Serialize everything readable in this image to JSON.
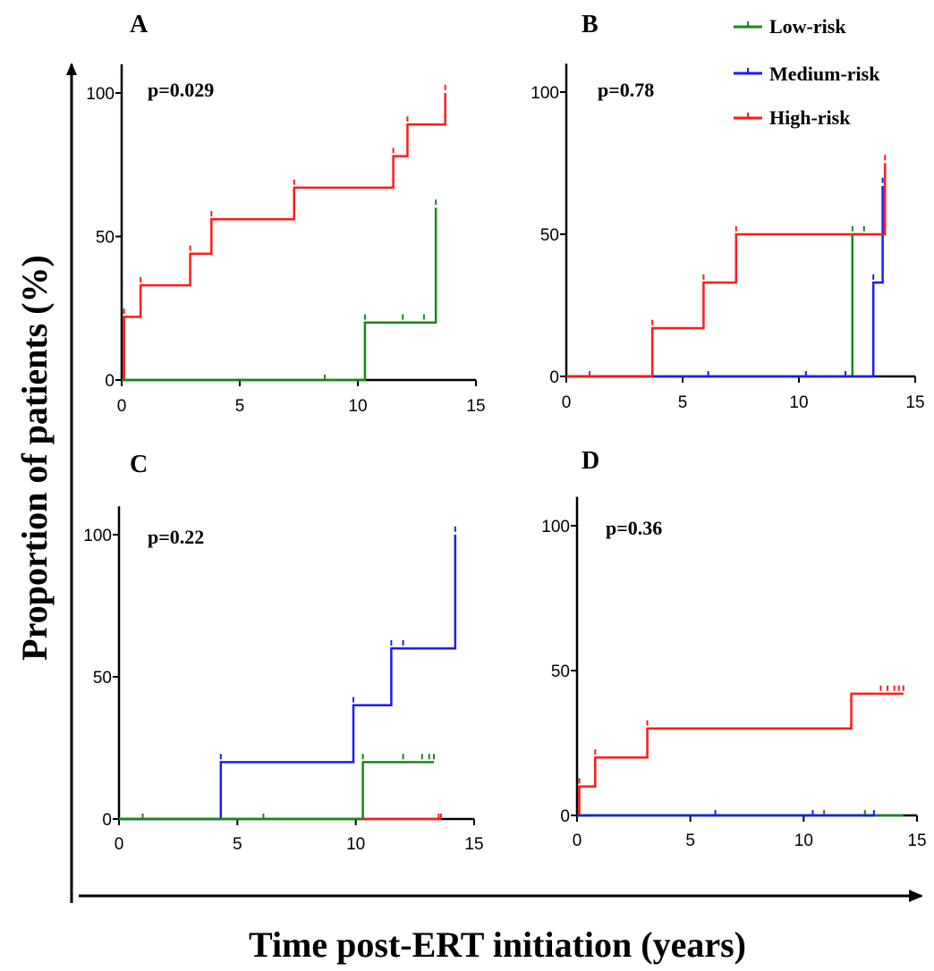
{
  "figure": {
    "y_axis_label": "Proportion  of patients (%)",
    "x_axis_label": "Time post-ERT initiation (years)"
  },
  "legend": {
    "placement": "top-right",
    "entries": [
      {
        "label": "Low-risk",
        "color": "#138a13"
      },
      {
        "label": "Medium-risk",
        "color": "#1a1aff"
      },
      {
        "label": "High-risk",
        "color": "#ff1a1a"
      }
    ]
  },
  "chart_data": [
    {
      "type": "line",
      "panel": "A",
      "annotation": "p=0.029",
      "xlim": [
        0,
        15
      ],
      "ylim": [
        0,
        110
      ],
      "x_ticks": [
        0,
        5,
        10,
        15
      ],
      "y_ticks": [
        0,
        50,
        100
      ],
      "series": [
        {
          "name": "High-risk",
          "color": "#ff1a1a",
          "steps": [
            [
              0,
              0
            ],
            [
              0.1,
              22
            ],
            [
              0.8,
              33
            ],
            [
              2.9,
              44
            ],
            [
              3.8,
              56
            ],
            [
              7.3,
              67
            ],
            [
              11.5,
              78
            ],
            [
              12.1,
              89
            ],
            [
              13.7,
              100
            ]
          ],
          "end": 13.7,
          "censored": [
            [
              0.1,
              23
            ],
            [
              0.8,
              34
            ],
            [
              2.9,
              45
            ],
            [
              3.8,
              57
            ],
            [
              7.3,
              68
            ],
            [
              11.5,
              79
            ],
            [
              12.1,
              90
            ],
            [
              13.7,
              101
            ]
          ]
        },
        {
          "name": "Low-risk",
          "color": "#138a13",
          "steps": [
            [
              0,
              0
            ],
            [
              10.3,
              20
            ],
            [
              13.3,
              60
            ]
          ],
          "end": 13.3,
          "censored": [
            [
              8.6,
              0
            ],
            [
              10.3,
              21
            ],
            [
              11.9,
              21
            ],
            [
              12.8,
              21
            ],
            [
              13.3,
              61
            ]
          ]
        }
      ]
    },
    {
      "type": "line",
      "panel": "B",
      "annotation": "p=0.78",
      "xlim": [
        0,
        15
      ],
      "ylim": [
        0,
        110
      ],
      "x_ticks": [
        0,
        5,
        10,
        15
      ],
      "y_ticks": [
        0,
        50,
        100
      ],
      "series": [
        {
          "name": "Low-risk",
          "color": "#138a13",
          "steps": [
            [
              0,
              0
            ],
            [
              12.3,
              50
            ]
          ],
          "end": 12.8,
          "censored": [
            [
              12.3,
              51
            ],
            [
              12.8,
              51
            ]
          ]
        },
        {
          "name": "Medium-risk",
          "color": "#1a1aff",
          "steps": [
            [
              0,
              0
            ],
            [
              13.2,
              33
            ],
            [
              13.6,
              67
            ]
          ],
          "end": 13.6,
          "censored": [
            [
              6.1,
              0
            ],
            [
              10.3,
              0
            ],
            [
              12.0,
              0
            ],
            [
              13.2,
              34
            ],
            [
              13.6,
              68
            ]
          ]
        },
        {
          "name": "High-risk",
          "color": "#ff1a1a",
          "steps": [
            [
              0,
              0
            ],
            [
              3.7,
              17
            ],
            [
              5.9,
              33
            ],
            [
              7.3,
              50
            ],
            [
              13.7,
              75
            ]
          ],
          "end": 13.7,
          "censored": [
            [
              1.0,
              0
            ],
            [
              3.7,
              18
            ],
            [
              5.9,
              34
            ],
            [
              7.3,
              51
            ],
            [
              13.7,
              76
            ]
          ]
        }
      ]
    },
    {
      "type": "line",
      "panel": "C",
      "annotation": "p=0.22",
      "xlim": [
        0,
        15
      ],
      "ylim": [
        0,
        110
      ],
      "x_ticks": [
        0,
        5,
        10,
        15
      ],
      "y_ticks": [
        0,
        50,
        100
      ],
      "series": [
        {
          "name": "Medium-risk",
          "color": "#1a1aff",
          "steps": [
            [
              0,
              0
            ],
            [
              4.3,
              20
            ],
            [
              9.9,
              40
            ],
            [
              11.5,
              60
            ],
            [
              14.2,
              100
            ]
          ],
          "end": 14.2,
          "censored": [
            [
              4.3,
              21
            ],
            [
              9.9,
              41
            ],
            [
              11.5,
              61
            ],
            [
              12.0,
              61
            ],
            [
              14.2,
              101
            ]
          ]
        },
        {
          "name": "Low-risk",
          "color": "#138a13",
          "steps": [
            [
              0,
              0
            ],
            [
              10.3,
              20
            ]
          ],
          "end": 13.3,
          "censored": [
            [
              1.0,
              0
            ],
            [
              6.1,
              0
            ],
            [
              10.3,
              21
            ],
            [
              12.0,
              21
            ],
            [
              12.8,
              21
            ],
            [
              13.1,
              21
            ],
            [
              13.3,
              21
            ]
          ]
        },
        {
          "name": "High-risk",
          "color": "#ff1a1a",
          "steps": [
            [
              10.3,
              0
            ]
          ],
          "end": 13.6,
          "censored": [
            [
              13.5,
              0
            ],
            [
              13.6,
              0
            ]
          ]
        }
      ]
    },
    {
      "type": "line",
      "panel": "D",
      "annotation": "p=0.36",
      "xlim": [
        0,
        15
      ],
      "ylim": [
        0,
        110
      ],
      "x_ticks": [
        0,
        5,
        10,
        15
      ],
      "y_ticks": [
        0,
        50,
        100
      ],
      "series": [
        {
          "name": "High-risk",
          "color": "#ff1a1a",
          "steps": [
            [
              0,
              0
            ],
            [
              0.1,
              10
            ],
            [
              0.8,
              20
            ],
            [
              3.1,
              30
            ],
            [
              12.1,
              42
            ]
          ],
          "end": 14.4,
          "censored": [
            [
              0.1,
              11
            ],
            [
              0.8,
              21
            ],
            [
              3.1,
              31
            ],
            [
              12.1,
              31
            ],
            [
              13.4,
              43
            ],
            [
              13.7,
              43
            ],
            [
              14.0,
              43
            ],
            [
              14.2,
              43
            ],
            [
              14.4,
              43
            ]
          ]
        },
        {
          "name": "Low-risk",
          "color": "#138a13",
          "steps": [
            [
              0,
              0
            ]
          ],
          "end": 14.4,
          "censored": [
            [
              10.9,
              0
            ],
            [
              12.7,
              0
            ]
          ]
        },
        {
          "name": "Medium-risk",
          "color": "#1a1aff",
          "steps": [
            [
              0,
              0
            ]
          ],
          "end": 13.1,
          "censored": [
            [
              6.1,
              0
            ],
            [
              10.4,
              0
            ],
            [
              13.1,
              0
            ]
          ]
        }
      ]
    }
  ]
}
